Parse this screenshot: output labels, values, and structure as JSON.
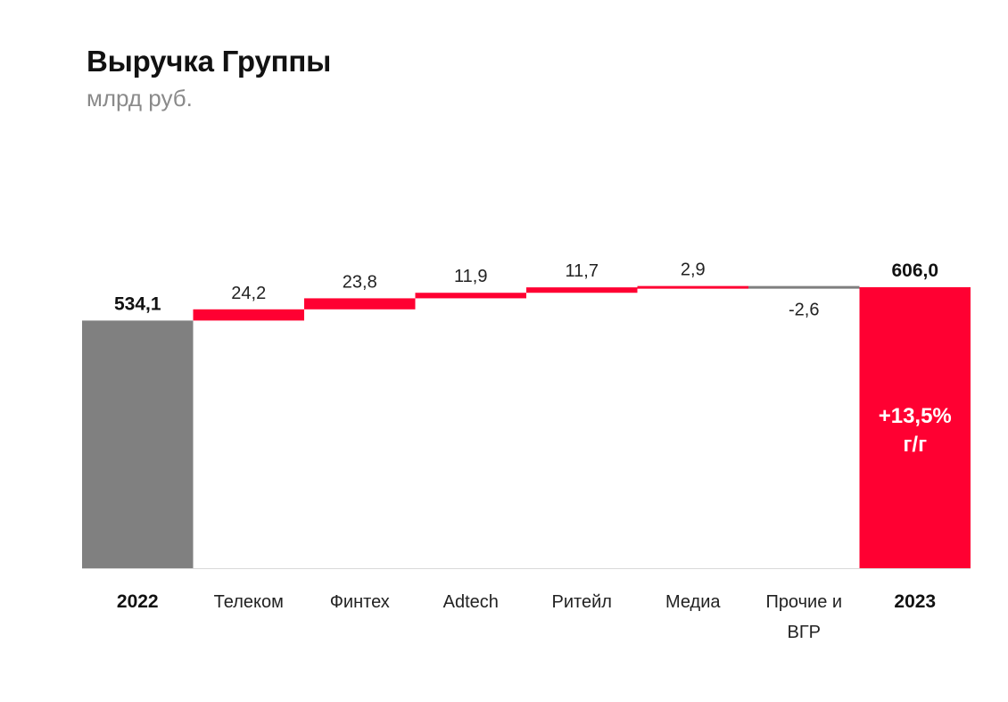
{
  "header": {
    "title": "Выручка Группы",
    "subtitle": "млрд руб."
  },
  "colors": {
    "total": "#808080",
    "increase": "#ff0032",
    "decrease": "#7f7f7f",
    "final": "#ff0032",
    "baseline": "#d9d9d9"
  },
  "chart_data": {
    "type": "waterfall",
    "title": "Выручка Группы",
    "unit": "млрд руб.",
    "categories": [
      "2022",
      "Телеком",
      "Финтех",
      "Adtech",
      "Ритейл",
      "Медиа",
      "Прочие и ВГР",
      "2023"
    ],
    "category_lines": [
      [
        "2022"
      ],
      [
        "Телеком"
      ],
      [
        "Финтех"
      ],
      [
        "Adtech"
      ],
      [
        "Ритейл"
      ],
      [
        "Медиа"
      ],
      [
        "Прочие и",
        "ВГР"
      ],
      [
        "2023"
      ]
    ],
    "values": [
      534.1,
      24.2,
      23.8,
      11.9,
      11.7,
      2.9,
      -2.6,
      606.0
    ],
    "kinds": [
      "total",
      "delta",
      "delta",
      "delta",
      "delta",
      "delta",
      "delta",
      "total"
    ],
    "value_labels": [
      "534,1",
      "24,2",
      "23,8",
      "11,9",
      "11,7",
      "2,9",
      "-2,6",
      "606,0"
    ],
    "bold_categories": [
      0,
      7
    ],
    "annotation": {
      "category_index": 7,
      "lines": [
        "+13,5%",
        "г/г"
      ]
    },
    "ylim": [
      0,
      640
    ]
  }
}
